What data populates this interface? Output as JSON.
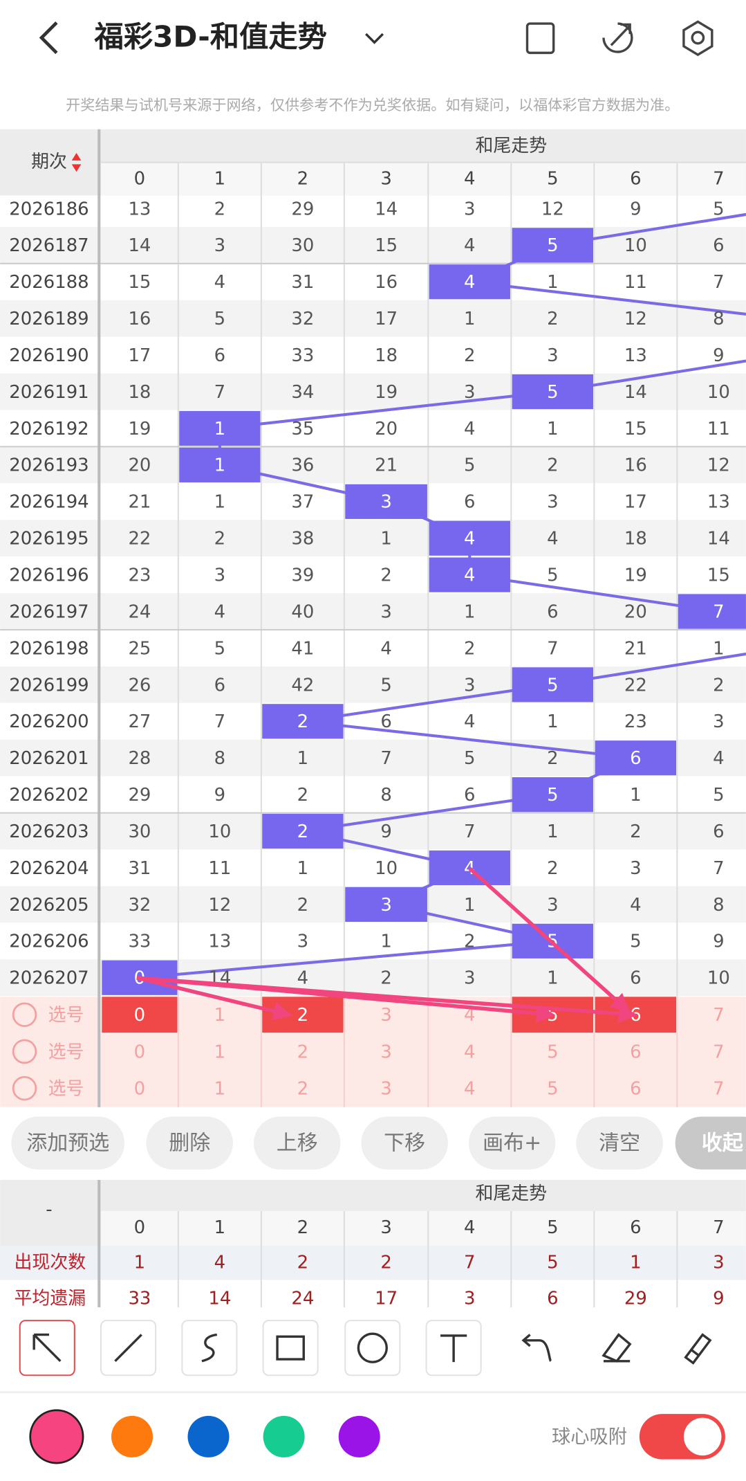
{
  "header": {
    "title": "福彩3D-和值走势"
  },
  "disclaimer": "开奖结果与试机号来源于网络，仅供参考不作为兑奖依据。如有疑问，以福体彩官方数据为准。",
  "trend_table": {
    "period_header": "期次",
    "group_header": "和尾走势",
    "columns": [
      0,
      1,
      2,
      3,
      4,
      5,
      6,
      7
    ],
    "rows": [
      {
        "period": "2026186",
        "cells": [
          13,
          2,
          29,
          14,
          3,
          12,
          9,
          5
        ],
        "highlight": null
      },
      {
        "period": "2026187",
        "cells": [
          14,
          3,
          30,
          15,
          4,
          5,
          10,
          6
        ],
        "highlight": 5
      },
      {
        "period": "2026188",
        "cells": [
          15,
          4,
          31,
          16,
          4,
          1,
          11,
          7
        ],
        "highlight": 4
      },
      {
        "period": "2026189",
        "cells": [
          16,
          5,
          32,
          17,
          1,
          2,
          12,
          8
        ],
        "highlight": null
      },
      {
        "period": "2026190",
        "cells": [
          17,
          6,
          33,
          18,
          2,
          3,
          13,
          9
        ],
        "highlight": null
      },
      {
        "period": "2026191",
        "cells": [
          18,
          7,
          34,
          19,
          3,
          5,
          14,
          10
        ],
        "highlight": 5
      },
      {
        "period": "2026192",
        "cells": [
          19,
          1,
          35,
          20,
          4,
          1,
          15,
          11
        ],
        "highlight": 1
      },
      {
        "period": "2026193",
        "cells": [
          20,
          1,
          36,
          21,
          5,
          2,
          16,
          12
        ],
        "highlight": 1
      },
      {
        "period": "2026194",
        "cells": [
          21,
          1,
          37,
          3,
          6,
          3,
          17,
          13
        ],
        "highlight": 3
      },
      {
        "period": "2026195",
        "cells": [
          22,
          2,
          38,
          1,
          4,
          4,
          18,
          14
        ],
        "highlight": 4
      },
      {
        "period": "2026196",
        "cells": [
          23,
          3,
          39,
          2,
          4,
          5,
          19,
          15
        ],
        "highlight": 4
      },
      {
        "period": "2026197",
        "cells": [
          24,
          4,
          40,
          3,
          1,
          6,
          20,
          7
        ],
        "highlight": 7
      },
      {
        "period": "2026198",
        "cells": [
          25,
          5,
          41,
          4,
          2,
          7,
          21,
          1
        ],
        "highlight": null
      },
      {
        "period": "2026199",
        "cells": [
          26,
          6,
          42,
          5,
          3,
          5,
          22,
          2
        ],
        "highlight": 5
      },
      {
        "period": "2026200",
        "cells": [
          27,
          7,
          2,
          6,
          4,
          1,
          23,
          3
        ],
        "highlight": 2
      },
      {
        "period": "2026201",
        "cells": [
          28,
          8,
          1,
          7,
          5,
          2,
          6,
          4
        ],
        "highlight": 6
      },
      {
        "period": "2026202",
        "cells": [
          29,
          9,
          2,
          8,
          6,
          5,
          1,
          5
        ],
        "highlight": 5
      },
      {
        "period": "2026203",
        "cells": [
          30,
          10,
          2,
          9,
          7,
          1,
          2,
          6
        ],
        "highlight": 2
      },
      {
        "period": "2026204",
        "cells": [
          31,
          11,
          1,
          10,
          4,
          2,
          3,
          7
        ],
        "highlight": 4
      },
      {
        "period": "2026205",
        "cells": [
          32,
          12,
          2,
          3,
          1,
          3,
          4,
          8
        ],
        "highlight": 3
      },
      {
        "period": "2026206",
        "cells": [
          33,
          13,
          3,
          1,
          2,
          5,
          5,
          9
        ],
        "highlight": 5
      },
      {
        "period": "2026207",
        "cells": [
          0,
          14,
          4,
          2,
          3,
          1,
          6,
          10
        ],
        "highlight": 0
      }
    ]
  },
  "pick_rows": [
    {
      "label": "选号",
      "selected": [
        0,
        2,
        5,
        6
      ]
    },
    {
      "label": "选号",
      "selected": []
    },
    {
      "label": "选号",
      "selected": []
    }
  ],
  "buttons": [
    "添加预选",
    "删除",
    "上移",
    "下移",
    "画布+",
    "清空",
    "收起"
  ],
  "stats": {
    "header": "-",
    "group_header": "和尾走势",
    "rows": [
      {
        "label": "出现次数",
        "values": [
          1,
          4,
          2,
          2,
          7,
          5,
          1,
          3
        ]
      },
      {
        "label": "平均遗漏",
        "values": [
          33,
          14,
          24,
          17,
          3,
          6,
          29,
          9
        ]
      }
    ]
  },
  "toolbar": {
    "snap_label": "球心吸附",
    "colors": [
      "#f5447f",
      "#ff7a0e",
      "#0a66cc",
      "#16cc90",
      "#9a14e8"
    ]
  }
}
